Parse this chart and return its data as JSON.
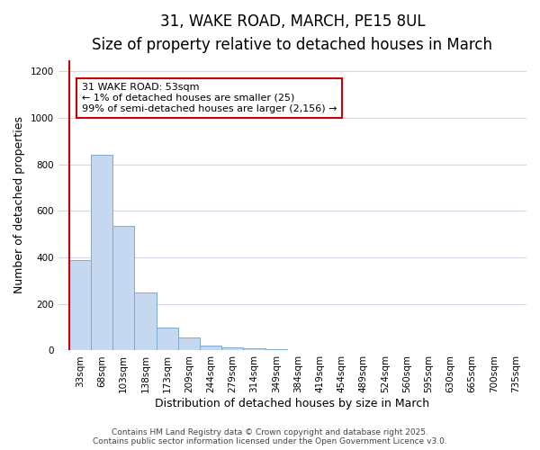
{
  "title_line1": "31, WAKE ROAD, MARCH, PE15 8UL",
  "title_line2": "Size of property relative to detached houses in March",
  "xlabel": "Distribution of detached houses by size in March",
  "ylabel": "Number of detached properties",
  "categories": [
    "33sqm",
    "68sqm",
    "103sqm",
    "138sqm",
    "173sqm",
    "209sqm",
    "244sqm",
    "279sqm",
    "314sqm",
    "349sqm",
    "384sqm",
    "419sqm",
    "454sqm",
    "489sqm",
    "524sqm",
    "560sqm",
    "595sqm",
    "630sqm",
    "665sqm",
    "700sqm",
    "735sqm"
  ],
  "values": [
    390,
    840,
    535,
    248,
    100,
    55,
    20,
    15,
    8,
    5,
    3,
    2,
    2,
    2,
    1,
    1,
    1,
    1,
    1,
    1,
    1
  ],
  "bar_color": "#c5d8f0",
  "bar_edge_color": "#7aaad4",
  "vline_color": "#cc0000",
  "annotation_text": "31 WAKE ROAD: 53sqm\n← 1% of detached houses are smaller (25)\n99% of semi-detached houses are larger (2,156) →",
  "annotation_box_color": "white",
  "annotation_box_edge": "#cc0000",
  "ylim": [
    0,
    1250
  ],
  "yticks": [
    0,
    200,
    400,
    600,
    800,
    1000,
    1200
  ],
  "background_color": "#ffffff",
  "plot_bg_color": "#ffffff",
  "grid_color": "#d0d8e8",
  "footer_line1": "Contains HM Land Registry data © Crown copyright and database right 2025.",
  "footer_line2": "Contains public sector information licensed under the Open Government Licence v3.0.",
  "title_fontsize": 12,
  "subtitle_fontsize": 10,
  "axis_label_fontsize": 9,
  "tick_fontsize": 7.5,
  "annotation_fontsize": 8,
  "footer_fontsize": 6.5
}
